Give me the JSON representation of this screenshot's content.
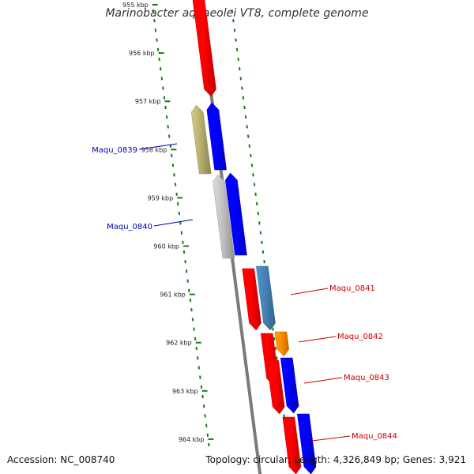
{
  "title": "Marinobacter aquaeolei VT8, complete genome",
  "footer": {
    "accession": "Accession: NC_008740",
    "stats": "Topology: circular; Length: 4,326,849 bp; Genes: 3,921"
  },
  "colors": {
    "backbone": "#7a7a7a",
    "ticks": "#1a7a1a",
    "forward_label": "#cc0000",
    "reverse_label": "#0000b0"
  },
  "ticks": [
    "955 kbp",
    "956 kbp",
    "957 kbp",
    "958 kbp",
    "959 kbp",
    "960 kbp",
    "961 kbp",
    "962 kbp",
    "963 kbp",
    "964 kbp"
  ],
  "gene_labels": [
    {
      "text": "Maqu_0839",
      "color": "#0000b0"
    },
    {
      "text": "Maqu_0840",
      "color": "#0000b0"
    },
    {
      "text": "Maqu_0841",
      "color": "#cc0000"
    },
    {
      "text": "Maqu_0842",
      "color": "#cc0000"
    },
    {
      "text": "Maqu_0843",
      "color": "#cc0000"
    },
    {
      "text": "Maqu_0844",
      "color": "#cc0000"
    }
  ],
  "features": [
    {
      "color": "#ff0000",
      "strand": "forward"
    },
    {
      "color": "#b8b070",
      "strand": "reverse"
    },
    {
      "color": "#0000ff",
      "strand": "reverse"
    },
    {
      "color": "#c0c0c0",
      "strand": "reverse"
    },
    {
      "color": "#0000ff",
      "strand": "reverse"
    },
    {
      "color": "#ff0000",
      "strand": "forward"
    },
    {
      "color": "#4682b4",
      "strand": "forward"
    },
    {
      "color": "#ff0000",
      "strand": "forward"
    },
    {
      "color": "#ff8c00",
      "strand": "forward"
    },
    {
      "color": "#ff0000",
      "strand": "forward"
    },
    {
      "color": "#0000ff",
      "strand": "forward"
    },
    {
      "color": "#ff0000",
      "strand": "forward"
    },
    {
      "color": "#0000ff",
      "strand": "forward"
    }
  ]
}
